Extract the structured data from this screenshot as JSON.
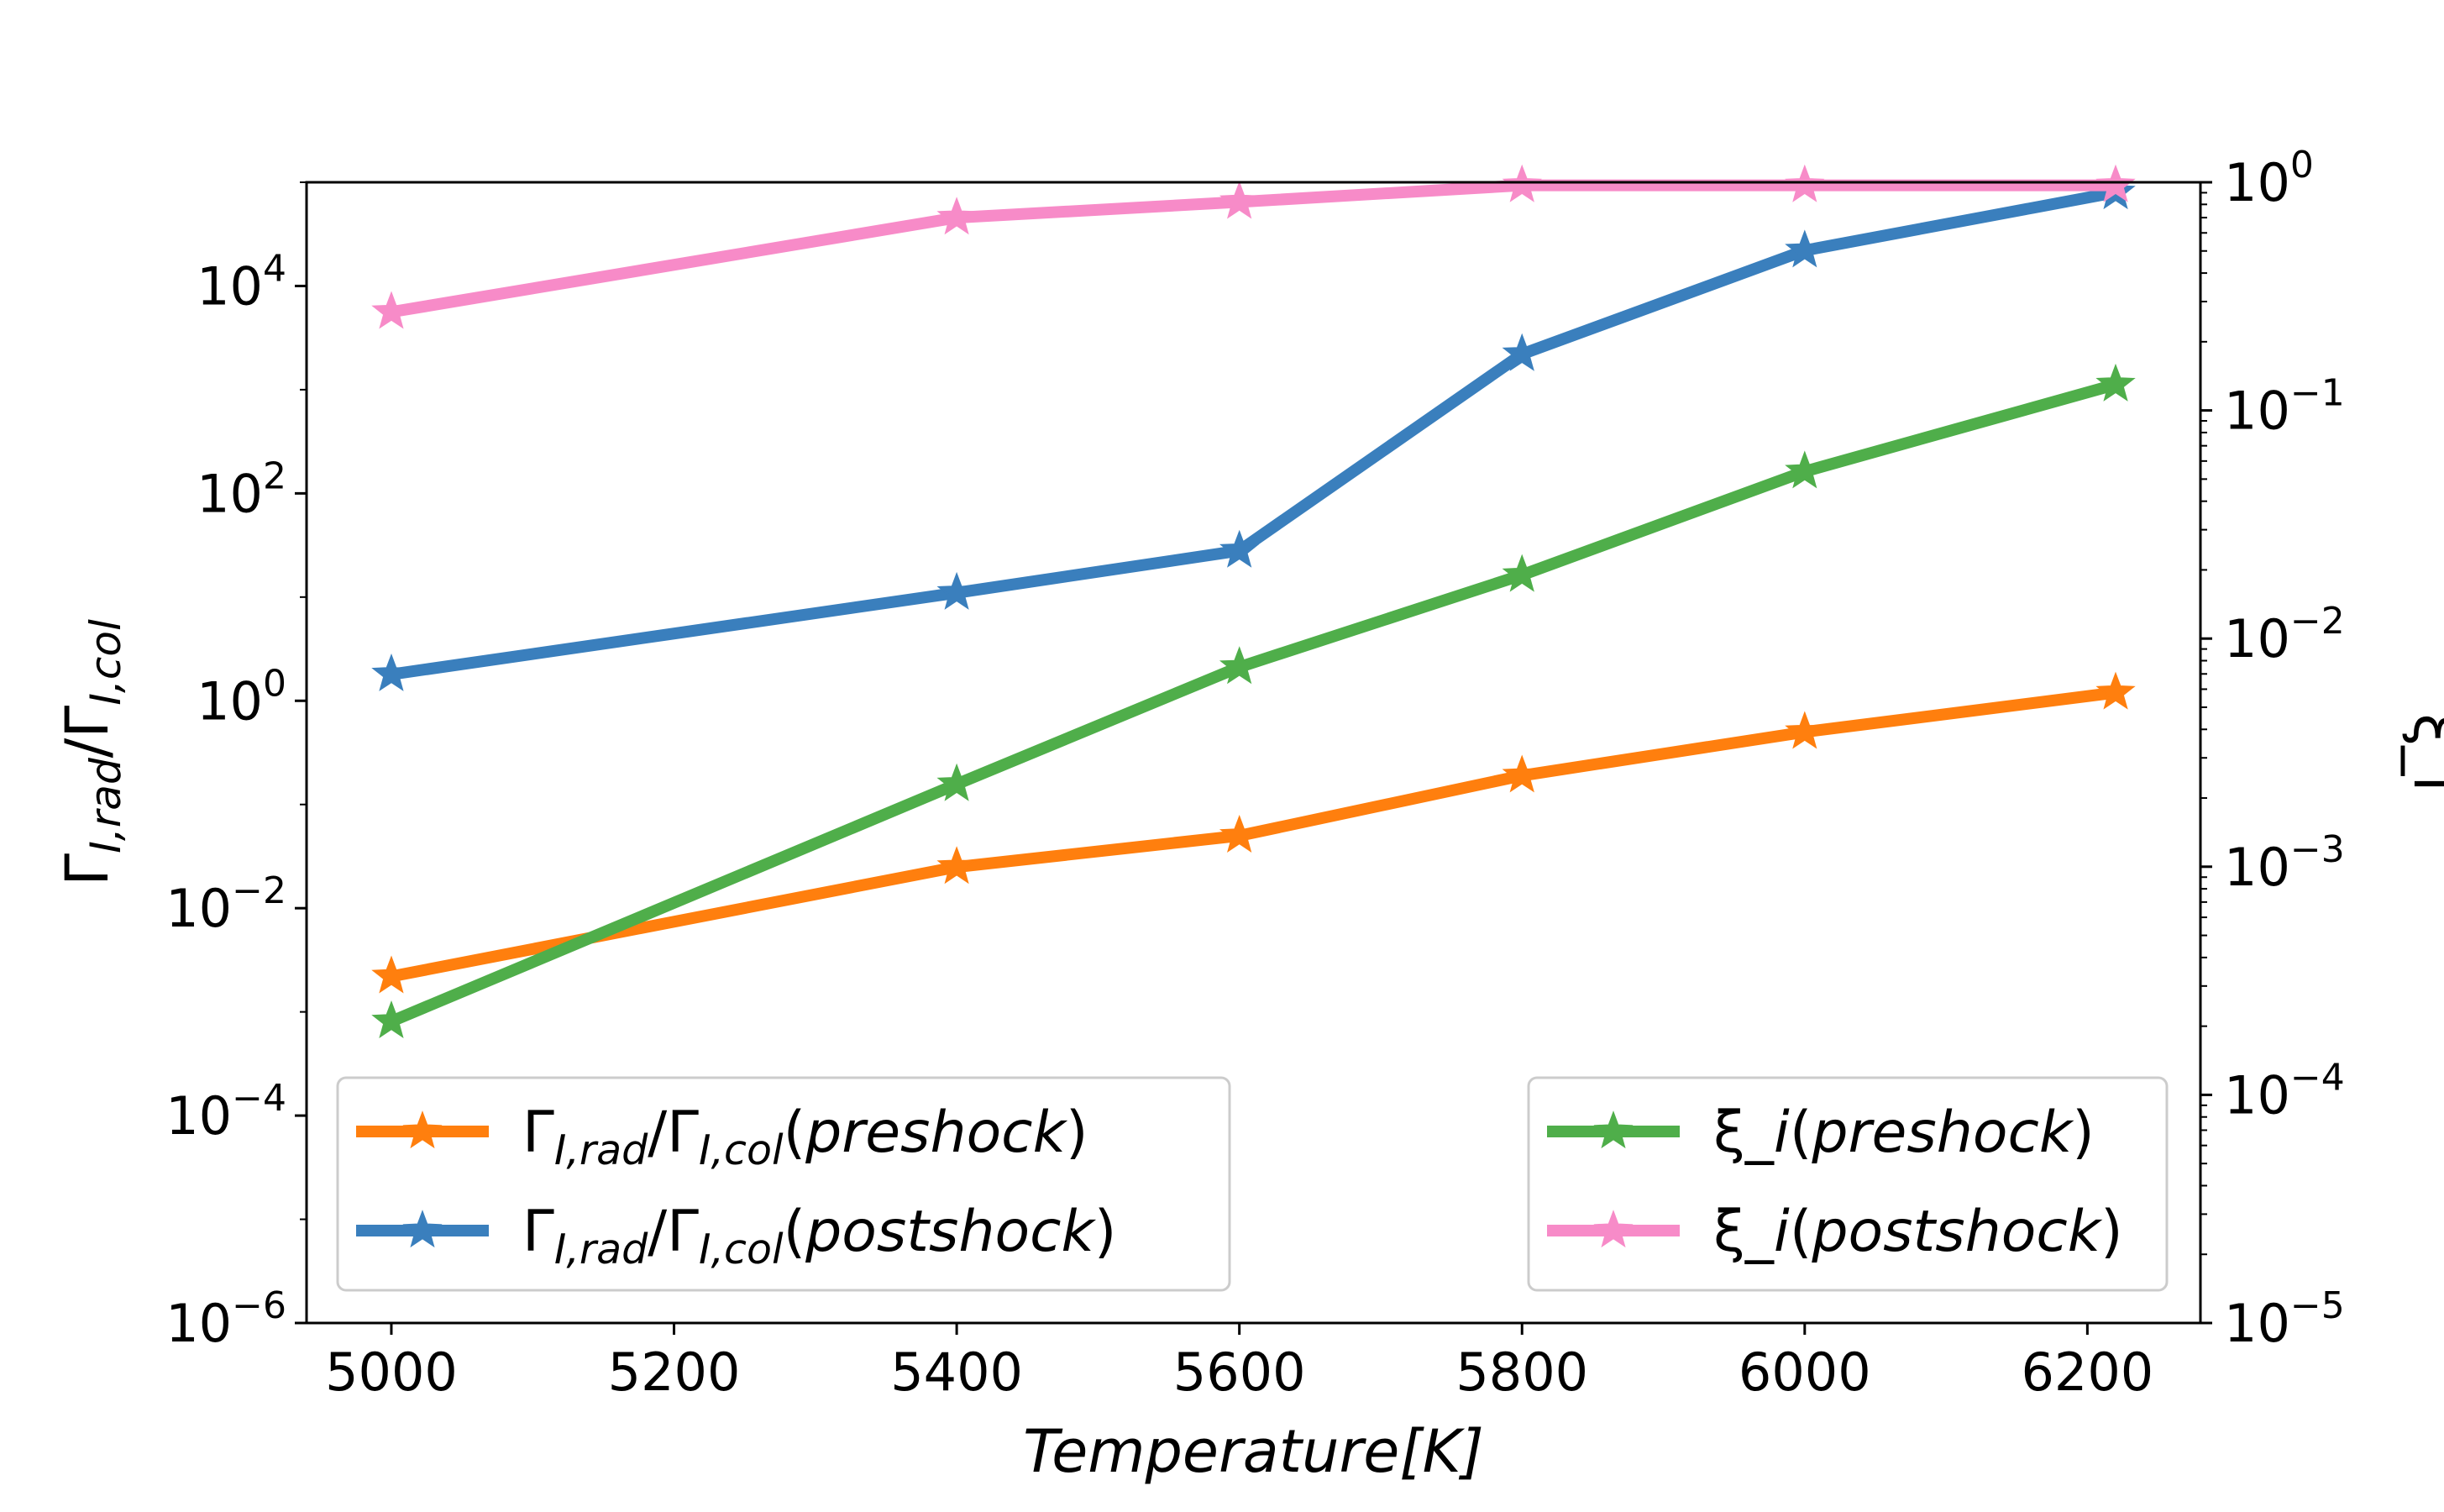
{
  "chart_data": {
    "type": "line",
    "xlabel": "Temperature[K]",
    "ylabel_left": "Γ_{I,rad}/Γ_{I,col}",
    "ylabel_right": "ξ_i",
    "x": [
      5000,
      5400,
      5600,
      5800,
      6000,
      6220
    ],
    "xlim": [
      4940,
      6280
    ],
    "xticks": [
      5000,
      5200,
      5400,
      5600,
      5800,
      6000,
      6200
    ],
    "yleft_scale": "log",
    "yleft_lim": [
      1e-06,
      100000.0
    ],
    "yleft_ticks": [
      {
        "base": "10",
        "exp": "−6",
        "value": -6
      },
      {
        "base": "10",
        "exp": "−4",
        "value": -4
      },
      {
        "base": "10",
        "exp": "−2",
        "value": -2
      },
      {
        "base": "10",
        "exp": "0",
        "value": 0
      },
      {
        "base": "10",
        "exp": "2",
        "value": 2
      },
      {
        "base": "10",
        "exp": "4",
        "value": 4
      }
    ],
    "yright_scale": "log",
    "yright_lim": [
      1e-05,
      1
    ],
    "yright_ticks": [
      {
        "base": "10",
        "exp": "−5",
        "value": -5
      },
      {
        "base": "10",
        "exp": "−4",
        "value": -4
      },
      {
        "base": "10",
        "exp": "−3",
        "value": -3
      },
      {
        "base": "10",
        "exp": "−2",
        "value": -2
      },
      {
        "base": "10",
        "exp": "−1",
        "value": -1
      },
      {
        "base": "10",
        "exp": "0",
        "value": 0
      }
    ],
    "series": [
      {
        "name": "Γ_{I,rad}/Γ_{I,col}(preshock)",
        "axis": "left",
        "color": "#ff7f0e",
        "values": [
          0.0022,
          0.025,
          0.05,
          0.19,
          0.5,
          1.2
        ]
      },
      {
        "name": "Γ_{I,rad}/Γ_{I,col}(postshock)",
        "axis": "left",
        "color": "#3a7fbd",
        "values": [
          1.8,
          11,
          28,
          2200,
          22000,
          80000
        ]
      },
      {
        "name": "ξ_i(preshock)",
        "axis": "right",
        "color": "#4fae4a",
        "values": [
          0.00021,
          0.0023,
          0.0075,
          0.019,
          0.054,
          0.13
        ]
      },
      {
        "name": "ξ_i(postshock)",
        "axis": "right",
        "color": "#f78bc8",
        "values": [
          0.27,
          0.7,
          0.82,
          0.97,
          0.97,
          0.97
        ]
      }
    ],
    "legends": [
      {
        "placement": "lower-left",
        "items": [
          0,
          1
        ]
      },
      {
        "placement": "lower-right",
        "items": [
          2,
          3
        ]
      }
    ],
    "grid": false
  }
}
